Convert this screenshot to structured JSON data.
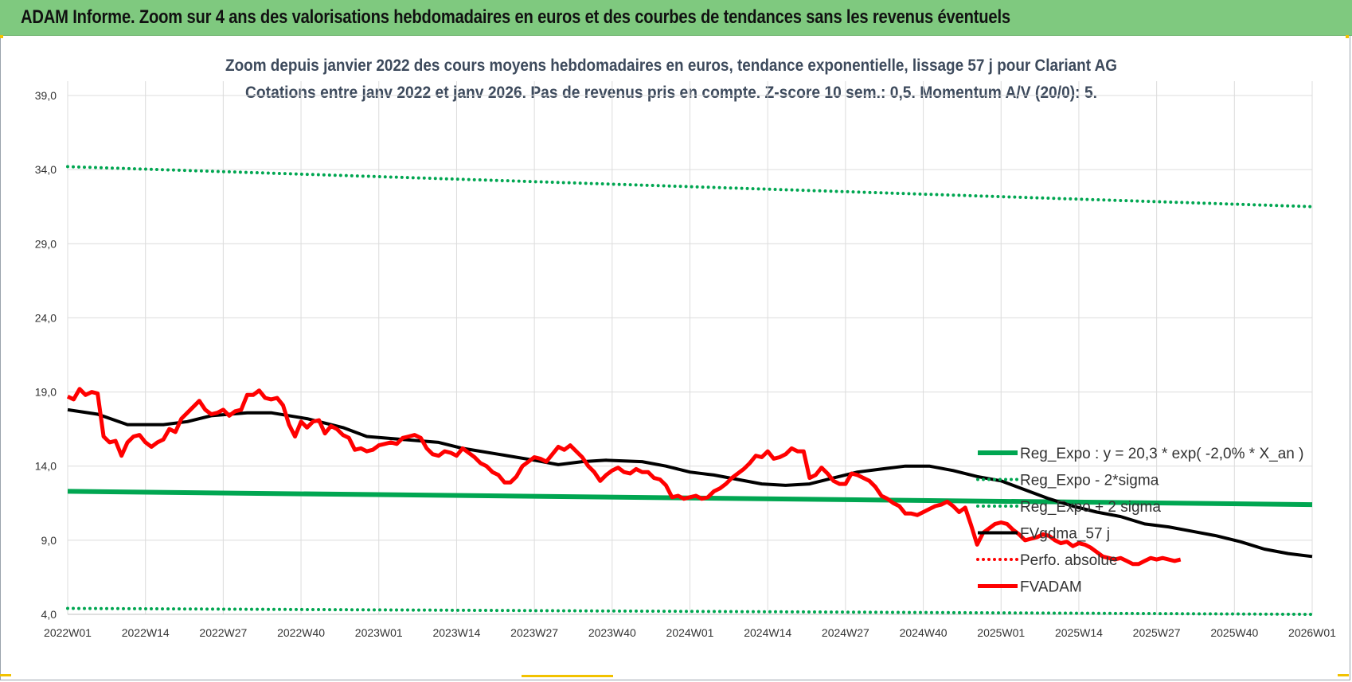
{
  "header": {
    "title": "ADAM Informe. Zoom sur 4 ans des valorisations hebdomadaires en euros et des courbes de tendances sans les revenus éventuels"
  },
  "colors": {
    "header_bg": "#7fc97f",
    "green": "#00a651",
    "red": "#ff0000",
    "black": "#000000",
    "grid": "#dcdcdc"
  },
  "chart_data": {
    "type": "line",
    "title": "Zoom depuis janvier 2022 des cours moyens hebdomadaires en euros, tendance exponentielle, lissage 57 j pour Clariant AG",
    "subtitle": "Cotations entre janv 2022 et janv 2026. Pas de revenus pris en compte. Z-score 10 sem.: 0,5. Momentum A/V (20/0): 5.",
    "x_ticks": [
      "2022W01",
      "2022W14",
      "2022W27",
      "2022W40",
      "2023W01",
      "2023W14",
      "2023W27",
      "2023W40",
      "2024W01",
      "2024W14",
      "2024W27",
      "2024W40",
      "2025W01",
      "2025W14",
      "2025W27",
      "2025W40",
      "2026W01"
    ],
    "y_ticks": [
      "4,0",
      "9,0",
      "14,0",
      "19,0",
      "24,0",
      "29,0",
      "34,0",
      "39,0"
    ],
    "ylim": [
      4,
      39
    ],
    "week_range": [
      0,
      208
    ],
    "series": [
      {
        "name": "Reg_Expo : y = 20,3 * exp( -2,0% *  X_an )",
        "style": "solid-green",
        "points": [
          [
            0,
            12.3
          ],
          [
            208,
            11.4
          ]
        ]
      },
      {
        "name": "Reg_Expo - 2*sigma",
        "style": "dotted-green",
        "points": [
          [
            0,
            4.4
          ],
          [
            208,
            4.0
          ]
        ]
      },
      {
        "name": "Reg_Expo + 2 sigma",
        "style": "dotted-green",
        "points": [
          [
            0,
            34.2
          ],
          [
            208,
            31.5
          ]
        ]
      },
      {
        "name": "FVgdma_57 j",
        "style": "solid-black",
        "points": [
          [
            0,
            17.8
          ],
          [
            5,
            17.5
          ],
          [
            10,
            16.8
          ],
          [
            16,
            16.8
          ],
          [
            20,
            17.0
          ],
          [
            24,
            17.4
          ],
          [
            30,
            17.6
          ],
          [
            34,
            17.6
          ],
          [
            40,
            17.2
          ],
          [
            46,
            16.6
          ],
          [
            50,
            16.0
          ],
          [
            56,
            15.8
          ],
          [
            62,
            15.6
          ],
          [
            66,
            15.2
          ],
          [
            72,
            14.8
          ],
          [
            78,
            14.4
          ],
          [
            82,
            14.1
          ],
          [
            86,
            14.3
          ],
          [
            90,
            14.4
          ],
          [
            96,
            14.3
          ],
          [
            100,
            14.0
          ],
          [
            104,
            13.6
          ],
          [
            108,
            13.4
          ],
          [
            112,
            13.1
          ],
          [
            116,
            12.8
          ],
          [
            120,
            12.7
          ],
          [
            124,
            12.8
          ],
          [
            128,
            13.2
          ],
          [
            132,
            13.6
          ],
          [
            136,
            13.8
          ],
          [
            140,
            14.0
          ],
          [
            144,
            14.0
          ],
          [
            148,
            13.7
          ],
          [
            152,
            13.3
          ],
          [
            156,
            13.0
          ],
          [
            160,
            12.4
          ],
          [
            164,
            11.8
          ],
          [
            168,
            11.3
          ],
          [
            172,
            10.9
          ],
          [
            176,
            10.6
          ],
          [
            180,
            10.1
          ],
          [
            184,
            9.9
          ],
          [
            188,
            9.6
          ],
          [
            192,
            9.3
          ],
          [
            196,
            8.9
          ],
          [
            200,
            8.4
          ],
          [
            204,
            8.1
          ],
          [
            208,
            7.9
          ]
        ]
      },
      {
        "name": "Perfo. absolue",
        "style": "dotted-red",
        "points": []
      },
      {
        "name": "FVADAM",
        "style": "solid-red",
        "points": [
          [
            0,
            18.7
          ],
          [
            1,
            18.5
          ],
          [
            2,
            19.2
          ],
          [
            3,
            18.8
          ],
          [
            4,
            19.0
          ],
          [
            5,
            18.9
          ],
          [
            6,
            16.0
          ],
          [
            7,
            15.6
          ],
          [
            8,
            15.7
          ],
          [
            9,
            14.7
          ],
          [
            10,
            15.6
          ],
          [
            11,
            16.0
          ],
          [
            12,
            16.1
          ],
          [
            13,
            15.6
          ],
          [
            14,
            15.3
          ],
          [
            15,
            15.6
          ],
          [
            16,
            15.8
          ],
          [
            17,
            16.5
          ],
          [
            18,
            16.3
          ],
          [
            19,
            17.2
          ],
          [
            20,
            17.6
          ],
          [
            21,
            18.0
          ],
          [
            22,
            18.4
          ],
          [
            23,
            17.8
          ],
          [
            24,
            17.5
          ],
          [
            25,
            17.6
          ],
          [
            26,
            17.8
          ],
          [
            27,
            17.4
          ],
          [
            28,
            17.7
          ],
          [
            29,
            17.8
          ],
          [
            30,
            18.8
          ],
          [
            31,
            18.8
          ],
          [
            32,
            19.1
          ],
          [
            33,
            18.6
          ],
          [
            34,
            18.5
          ],
          [
            35,
            18.6
          ],
          [
            36,
            18.1
          ],
          [
            37,
            16.8
          ],
          [
            38,
            16.0
          ],
          [
            39,
            17.0
          ],
          [
            40,
            16.6
          ],
          [
            41,
            17.0
          ],
          [
            42,
            17.1
          ],
          [
            43,
            16.2
          ],
          [
            44,
            16.7
          ],
          [
            45,
            16.5
          ],
          [
            46,
            16.1
          ],
          [
            47,
            15.9
          ],
          [
            48,
            15.1
          ],
          [
            49,
            15.2
          ],
          [
            50,
            15.0
          ],
          [
            51,
            15.1
          ],
          [
            52,
            15.4
          ],
          [
            53,
            15.5
          ],
          [
            54,
            15.6
          ],
          [
            55,
            15.5
          ],
          [
            56,
            15.9
          ],
          [
            57,
            16.0
          ],
          [
            58,
            16.1
          ],
          [
            59,
            15.9
          ],
          [
            60,
            15.2
          ],
          [
            61,
            14.8
          ],
          [
            62,
            14.7
          ],
          [
            63,
            15.0
          ],
          [
            64,
            14.9
          ],
          [
            65,
            14.7
          ],
          [
            66,
            15.2
          ],
          [
            67,
            14.9
          ],
          [
            68,
            14.6
          ],
          [
            69,
            14.2
          ],
          [
            70,
            14.0
          ],
          [
            71,
            13.6
          ],
          [
            72,
            13.4
          ],
          [
            73,
            12.9
          ],
          [
            74,
            12.9
          ],
          [
            75,
            13.3
          ],
          [
            76,
            14.0
          ],
          [
            77,
            14.3
          ],
          [
            78,
            14.6
          ],
          [
            79,
            14.5
          ],
          [
            80,
            14.3
          ],
          [
            81,
            14.8
          ],
          [
            82,
            15.3
          ],
          [
            83,
            15.1
          ],
          [
            84,
            15.4
          ],
          [
            85,
            15.0
          ],
          [
            86,
            14.6
          ],
          [
            87,
            14.0
          ],
          [
            88,
            13.6
          ],
          [
            89,
            13.0
          ],
          [
            90,
            13.4
          ],
          [
            91,
            13.7
          ],
          [
            92,
            13.9
          ],
          [
            93,
            13.6
          ],
          [
            94,
            13.5
          ],
          [
            95,
            13.8
          ],
          [
            96,
            13.6
          ],
          [
            97,
            13.6
          ],
          [
            98,
            13.2
          ],
          [
            99,
            13.1
          ],
          [
            100,
            12.7
          ],
          [
            101,
            11.9
          ],
          [
            102,
            12.0
          ],
          [
            103,
            11.8
          ],
          [
            104,
            11.9
          ],
          [
            105,
            12.0
          ],
          [
            106,
            11.8
          ],
          [
            107,
            11.9
          ],
          [
            108,
            12.3
          ],
          [
            109,
            12.5
          ],
          [
            110,
            12.8
          ],
          [
            111,
            13.2
          ],
          [
            112,
            13.5
          ],
          [
            113,
            13.8
          ],
          [
            114,
            14.2
          ],
          [
            115,
            14.7
          ],
          [
            116,
            14.6
          ],
          [
            117,
            15.0
          ],
          [
            118,
            14.5
          ],
          [
            119,
            14.6
          ],
          [
            120,
            14.8
          ],
          [
            121,
            15.2
          ],
          [
            122,
            15.0
          ],
          [
            123,
            15.0
          ],
          [
            124,
            13.2
          ],
          [
            125,
            13.4
          ],
          [
            126,
            13.9
          ],
          [
            127,
            13.5
          ],
          [
            128,
            13.0
          ],
          [
            129,
            12.8
          ],
          [
            130,
            12.8
          ],
          [
            131,
            13.5
          ],
          [
            132,
            13.4
          ],
          [
            133,
            13.2
          ],
          [
            134,
            13.0
          ],
          [
            135,
            12.6
          ],
          [
            136,
            12.0
          ],
          [
            137,
            11.8
          ],
          [
            138,
            11.5
          ],
          [
            139,
            11.3
          ],
          [
            140,
            10.8
          ],
          [
            141,
            10.8
          ],
          [
            142,
            10.7
          ],
          [
            143,
            10.9
          ],
          [
            144,
            11.1
          ],
          [
            145,
            11.3
          ],
          [
            146,
            11.4
          ],
          [
            147,
            11.6
          ],
          [
            148,
            11.3
          ],
          [
            149,
            10.9
          ],
          [
            150,
            11.2
          ],
          [
            151,
            10.0
          ],
          [
            152,
            8.7
          ],
          [
            153,
            9.5
          ],
          [
            154,
            9.8
          ],
          [
            155,
            10.1
          ],
          [
            156,
            10.2
          ],
          [
            157,
            10.1
          ],
          [
            158,
            9.7
          ],
          [
            159,
            9.4
          ],
          [
            160,
            9.0
          ],
          [
            161,
            9.1
          ],
          [
            162,
            9.2
          ],
          [
            163,
            9.4
          ],
          [
            164,
            9.3
          ],
          [
            165,
            9.0
          ],
          [
            166,
            8.8
          ],
          [
            167,
            8.9
          ],
          [
            168,
            8.6
          ],
          [
            169,
            8.8
          ],
          [
            170,
            8.7
          ],
          [
            171,
            8.5
          ],
          [
            172,
            8.2
          ],
          [
            173,
            7.9
          ],
          [
            174,
            7.8
          ],
          [
            175,
            7.7
          ],
          [
            176,
            7.8
          ],
          [
            177,
            7.6
          ],
          [
            178,
            7.4
          ],
          [
            179,
            7.4
          ],
          [
            180,
            7.6
          ],
          [
            181,
            7.8
          ],
          [
            182,
            7.7
          ],
          [
            183,
            7.8
          ],
          [
            184,
            7.7
          ],
          [
            185,
            7.6
          ],
          [
            186,
            7.7
          ]
        ]
      }
    ]
  }
}
